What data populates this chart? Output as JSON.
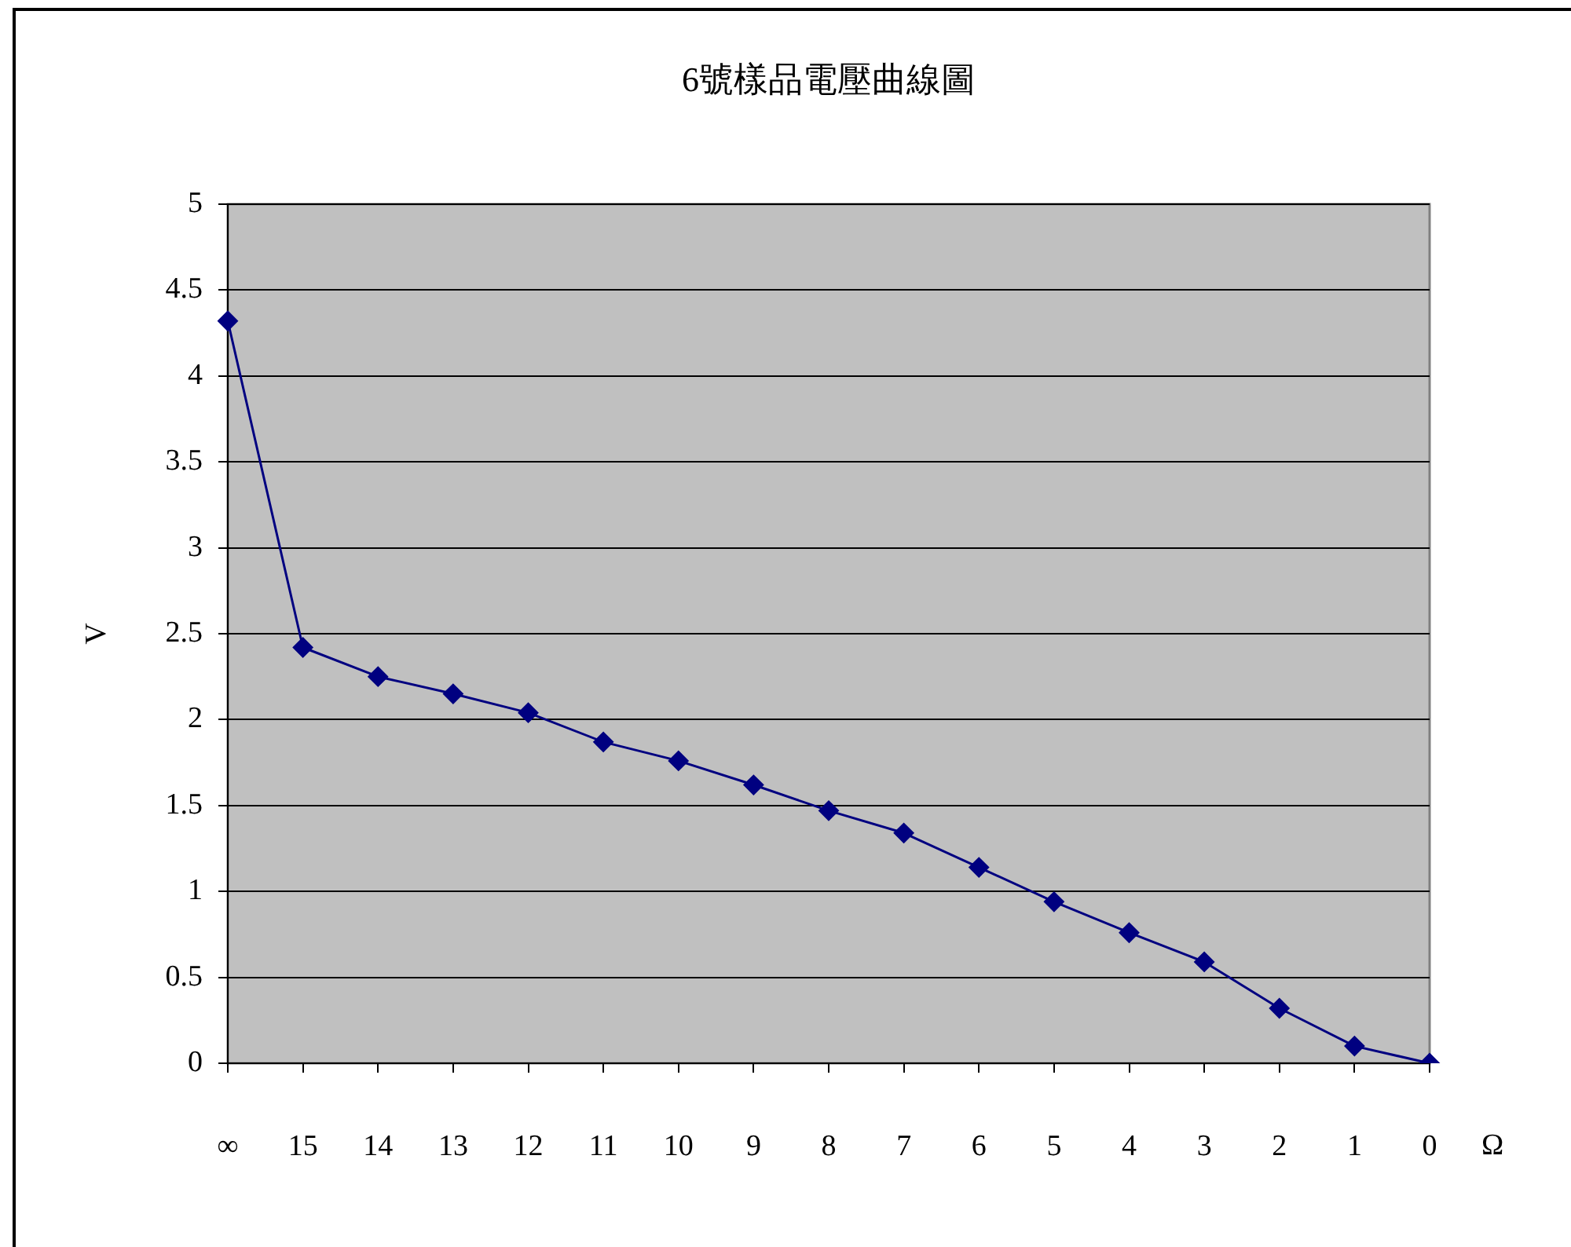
{
  "chart_data": {
    "type": "line",
    "title": "6號樣品電壓曲線圖",
    "xlabel": "Ω",
    "ylabel": "V",
    "categories": [
      "∞",
      "15",
      "14",
      "13",
      "12",
      "11",
      "10",
      "9",
      "8",
      "7",
      "6",
      "5",
      "4",
      "3",
      "2",
      "1",
      "0"
    ],
    "series": [
      {
        "color": "#000080",
        "values": [
          4.32,
          2.42,
          2.25,
          2.15,
          2.04,
          1.87,
          1.76,
          1.62,
          1.47,
          1.34,
          1.14,
          0.94,
          0.76,
          0.59,
          0.32,
          0.1,
          0
        ]
      }
    ],
    "ylim": [
      0,
      5
    ],
    "yticks": [
      0,
      0.5,
      1,
      1.5,
      2,
      2.5,
      3,
      3.5,
      4,
      4.5,
      5
    ],
    "grid": "y",
    "legend": false,
    "marker": "diamond",
    "line_style": "solid"
  }
}
